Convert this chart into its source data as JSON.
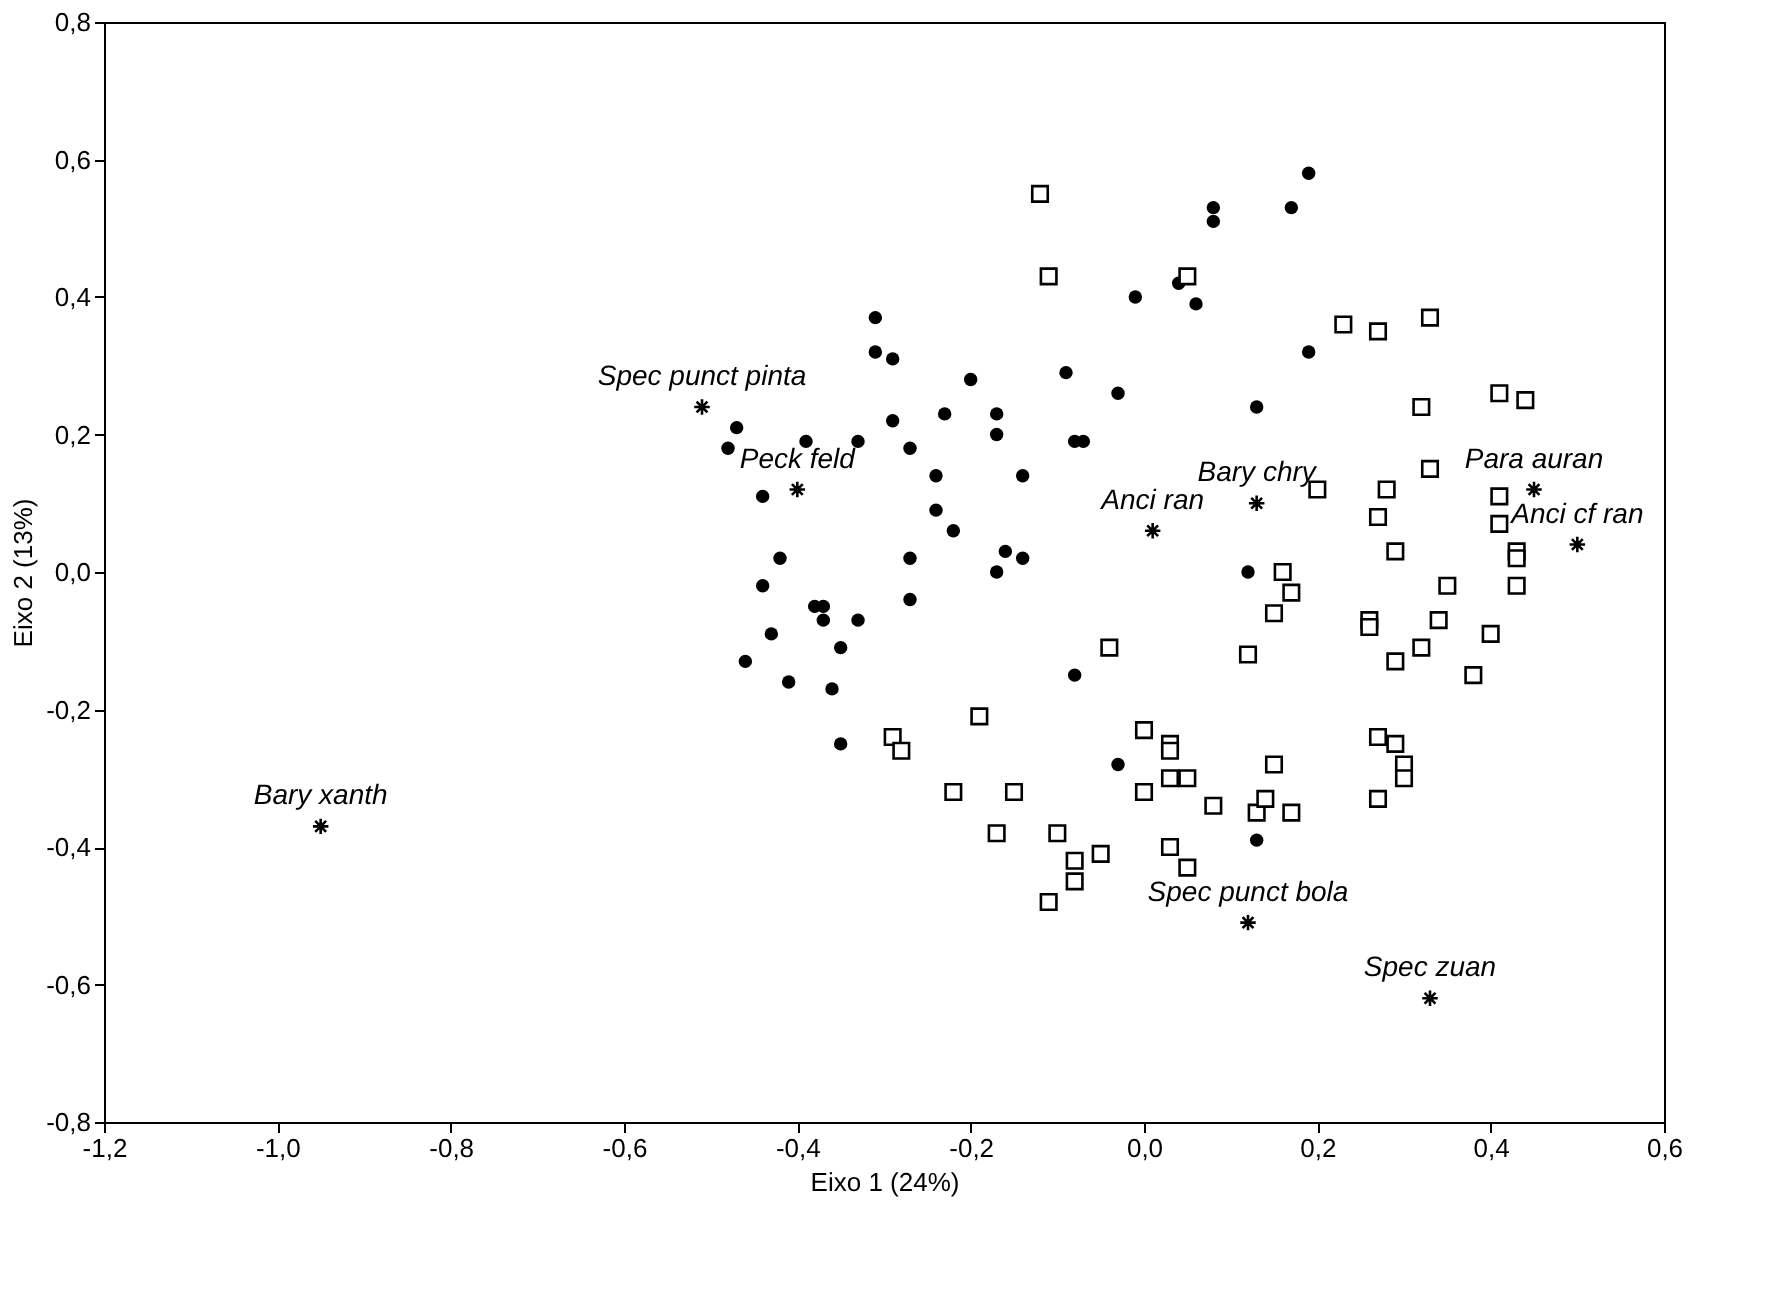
{
  "chart_data": {
    "type": "scatter",
    "xlabel": "Eixo 1 (24%)",
    "ylabel": "Eixo 2 (13%)",
    "xlim": [
      -1.2,
      0.6
    ],
    "ylim": [
      -0.8,
      0.8
    ],
    "xticks": [
      {
        "value": -1.2,
        "label": "-1,2"
      },
      {
        "value": -1.0,
        "label": "-1,0"
      },
      {
        "value": -0.8,
        "label": "-0,8"
      },
      {
        "value": -0.6,
        "label": "-0,6"
      },
      {
        "value": -0.4,
        "label": "-0,4"
      },
      {
        "value": -0.2,
        "label": "-0,2"
      },
      {
        "value": 0.0,
        "label": "0,0"
      },
      {
        "value": 0.2,
        "label": "0,2"
      },
      {
        "value": 0.4,
        "label": "0,4"
      },
      {
        "value": 0.6,
        "label": "0,6"
      }
    ],
    "yticks": [
      {
        "value": -0.8,
        "label": "-0,8"
      },
      {
        "value": -0.6,
        "label": "-0,6"
      },
      {
        "value": -0.4,
        "label": "-0,4"
      },
      {
        "value": -0.2,
        "label": "-0,2"
      },
      {
        "value": 0.0,
        "label": "0,0"
      },
      {
        "value": 0.2,
        "label": "0,2"
      },
      {
        "value": 0.4,
        "label": "0,4"
      },
      {
        "value": 0.6,
        "label": "0,6"
      },
      {
        "value": 0.8,
        "label": "0,8"
      }
    ],
    "series": [
      {
        "color": "#000000",
        "marker": "circle",
        "x": [
          0.19,
          0.08,
          0.08,
          0.17,
          -0.01,
          0.06,
          0.04,
          0.19,
          0.13,
          0.12,
          -0.31,
          -0.31,
          -0.29,
          -0.2,
          -0.09,
          -0.03,
          -0.47,
          -0.48,
          -0.39,
          -0.33,
          -0.29,
          -0.23,
          -0.27,
          -0.17,
          -0.17,
          -0.08,
          -0.07,
          -0.24,
          -0.14,
          -0.44,
          -0.24,
          -0.22,
          -0.42,
          -0.27,
          -0.16,
          -0.14,
          -0.17,
          -0.44,
          -0.38,
          -0.37,
          -0.37,
          -0.33,
          -0.27,
          -0.43,
          -0.46,
          -0.35,
          -0.41,
          -0.36,
          -0.35,
          -0.08,
          -0.03,
          0.13
        ],
        "values": [
          0.58,
          0.53,
          0.51,
          0.53,
          0.4,
          0.39,
          0.42,
          0.32,
          0.24,
          0.0,
          0.37,
          0.32,
          0.31,
          0.28,
          0.29,
          0.26,
          0.21,
          0.18,
          0.19,
          0.19,
          0.22,
          0.23,
          0.18,
          0.23,
          0.2,
          0.19,
          0.19,
          0.14,
          0.14,
          0.11,
          0.09,
          0.06,
          0.02,
          0.02,
          0.03,
          0.02,
          0.0,
          -0.02,
          -0.05,
          -0.05,
          -0.07,
          -0.07,
          -0.04,
          -0.09,
          -0.13,
          -0.11,
          -0.16,
          -0.17,
          -0.25,
          -0.15,
          -0.28,
          -0.39
        ]
      },
      {
        "color": "#000000",
        "marker": "square",
        "x": [
          -0.12,
          -0.11,
          0.05,
          0.23,
          0.27,
          0.33,
          0.32,
          0.41,
          0.44,
          0.33,
          0.2,
          0.28,
          0.27,
          0.41,
          0.41,
          0.29,
          0.43,
          0.43,
          0.16,
          0.17,
          0.15,
          -0.04,
          0.12,
          0.26,
          0.26,
          0.34,
          0.35,
          0.43,
          0.4,
          0.29,
          0.32,
          0.38,
          0.0,
          0.03,
          0.03,
          0.0,
          0.03,
          0.05,
          0.15,
          0.08,
          0.13,
          0.14,
          0.17,
          0.27,
          0.29,
          0.3,
          0.3,
          0.27,
          -0.05,
          0.03,
          0.05,
          -0.29,
          -0.28,
          -0.19,
          -0.22,
          -0.15,
          -0.17,
          -0.1,
          -0.08,
          -0.08,
          -0.11
        ],
        "values": [
          0.55,
          0.43,
          0.43,
          0.36,
          0.35,
          0.37,
          0.24,
          0.26,
          0.25,
          0.15,
          0.12,
          0.12,
          0.08,
          0.11,
          0.07,
          0.03,
          0.03,
          0.02,
          0.0,
          -0.03,
          -0.06,
          -0.11,
          -0.12,
          -0.07,
          -0.08,
          -0.07,
          -0.02,
          -0.02,
          -0.09,
          -0.13,
          -0.11,
          -0.15,
          -0.23,
          -0.25,
          -0.26,
          -0.32,
          -0.3,
          -0.3,
          -0.28,
          -0.34,
          -0.35,
          -0.33,
          -0.35,
          -0.24,
          -0.25,
          -0.28,
          -0.3,
          -0.33,
          -0.41,
          -0.4,
          -0.43,
          -0.24,
          -0.26,
          -0.21,
          -0.32,
          -0.32,
          -0.38,
          -0.38,
          -0.42,
          -0.45,
          -0.48
        ]
      },
      {
        "color": "#000000",
        "marker": "cross",
        "x": [
          -0.51,
          -0.4,
          0.01,
          0.13,
          0.45,
          0.5,
          0.12,
          0.33,
          -0.95
        ],
        "values": [
          0.24,
          0.12,
          0.06,
          0.1,
          0.12,
          0.04,
          -0.51,
          -0.62,
          -0.37
        ]
      }
    ],
    "annotations": [
      {
        "text": "Spec punct pinta",
        "x": -0.51,
        "y": 0.24
      },
      {
        "text": "Peck feld",
        "x": -0.4,
        "y": 0.12
      },
      {
        "text": "Anci ran",
        "x": 0.01,
        "y": 0.06
      },
      {
        "text": "Bary chry",
        "x": 0.13,
        "y": 0.1
      },
      {
        "text": "Para auran",
        "x": 0.45,
        "y": 0.12
      },
      {
        "text": "Anci cf ran",
        "x": 0.5,
        "y": 0.04
      },
      {
        "text": "Spec punct bola",
        "x": 0.12,
        "y": -0.51
      },
      {
        "text": "Spec zuan",
        "x": 0.33,
        "y": -0.62
      },
      {
        "text": "Bary xanth",
        "x": -0.95,
        "y": -0.37
      }
    ]
  }
}
